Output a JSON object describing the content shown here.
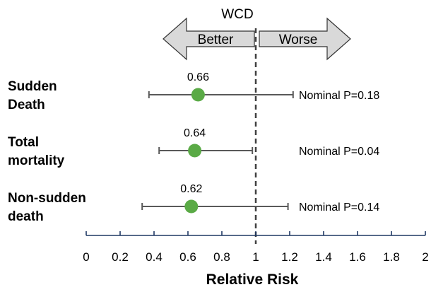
{
  "chart_data": {
    "type": "scatter",
    "subtype": "forest-plot",
    "title": "WCD",
    "xlabel": "Relative Risk",
    "ylabel": "",
    "xlim": [
      0,
      2
    ],
    "xticks": [
      0,
      0.2,
      0.4,
      0.6,
      0.8,
      1,
      1.2,
      1.4,
      1.6,
      1.8,
      2
    ],
    "xtick_labels": [
      "0",
      "0.2",
      "0.4",
      "0.6",
      "0.8",
      "1",
      "1.2",
      "1.4",
      "1.6",
      "1.8",
      "2"
    ],
    "reference_line": 1,
    "direction_labels": {
      "left": "Better",
      "right": "Worse"
    },
    "point_color": "#5aaa46",
    "rows": [
      {
        "category": [
          "Sudden",
          "Death"
        ],
        "estimate": 0.66,
        "ci_low": 0.37,
        "ci_high": 1.22,
        "estimate_label": "0.66",
        "annotation": "Nominal P=0.18"
      },
      {
        "category": [
          "Total",
          "mortality"
        ],
        "estimate": 0.64,
        "ci_low": 0.43,
        "ci_high": 0.98,
        "estimate_label": "0.64",
        "annotation": "Nominal P=0.04"
      },
      {
        "category": [
          "Non-sudden",
          "death"
        ],
        "estimate": 0.62,
        "ci_low": 0.33,
        "ci_high": 1.19,
        "estimate_label": "0.62",
        "annotation": "Nominal P=0.14"
      }
    ]
  }
}
